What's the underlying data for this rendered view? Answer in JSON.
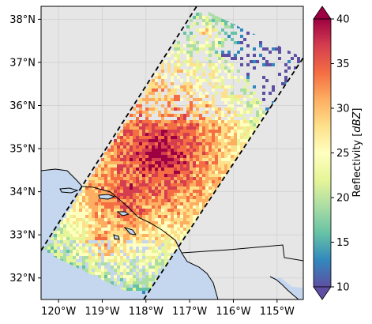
{
  "chart_data": {
    "type": "heatmap",
    "title": "",
    "x_ticks": [
      "120°W",
      "119°W",
      "118°W",
      "117°W",
      "116°W",
      "115°W"
    ],
    "x_tick_values": [
      -120,
      -119,
      -118,
      -117,
      -116,
      -115
    ],
    "y_ticks": [
      "32°N",
      "33°N",
      "34°N",
      "35°N",
      "36°N",
      "37°N",
      "38°N"
    ],
    "y_tick_values": [
      32,
      33,
      34,
      35,
      36,
      37,
      38
    ],
    "xlim": [
      -120.4,
      -114.4
    ],
    "ylim": [
      31.5,
      38.3
    ],
    "grid": true,
    "colorbar": {
      "label": "Reflectivity [dBZ]",
      "ticks": [
        "10",
        "15",
        "20",
        "25",
        "30",
        "35",
        "40"
      ],
      "tick_values": [
        10,
        15,
        20,
        25,
        30,
        35,
        40
      ],
      "range": [
        10,
        40
      ],
      "colormap": "Spectral_r",
      "extend": "both"
    },
    "swath_bounds_lonlat": [
      [
        [
          -120.4,
          32.6
        ],
        [
          -116.45,
          38.3
        ]
      ],
      [
        [
          -117.85,
          31.5
        ],
        [
          -114.4,
          37.1
        ]
      ]
    ],
    "colors": {
      "land": "#e6e6e6",
      "ocean": "#c4d7ef",
      "swath_line": "#000000"
    }
  }
}
